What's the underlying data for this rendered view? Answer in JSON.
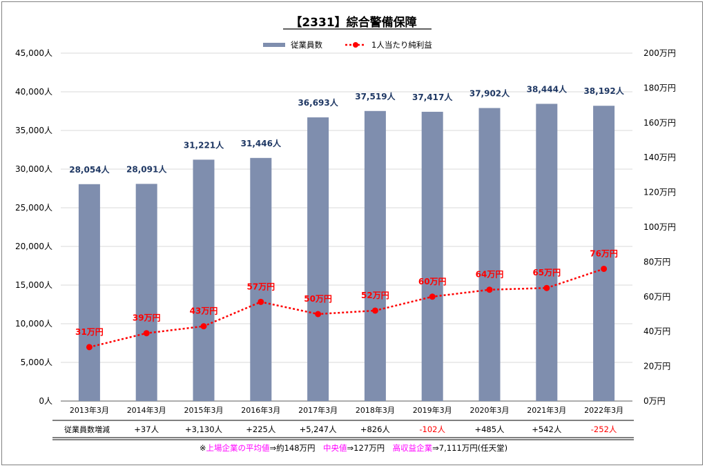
{
  "chart_data": {
    "type": "bar",
    "title": "【2331】綜合警備保障",
    "categories": [
      "2013年3月",
      "2014年3月",
      "2015年3月",
      "2016年3月",
      "2017年3月",
      "2018年3月",
      "2019年3月",
      "2020年3月",
      "2021年3月",
      "2022年3月"
    ],
    "series": [
      {
        "name": "従業員数",
        "type": "bar",
        "axis": "left",
        "color": "#7f8eae",
        "values": [
          28054,
          28091,
          31221,
          31446,
          36693,
          37519,
          37417,
          37902,
          38444,
          38192
        ],
        "labels": [
          "28,054人",
          "28,091人",
          "31,221人",
          "31,446人",
          "36,693人",
          "37,519人",
          "37,417人",
          "37,902人",
          "38,444人",
          "38,192人"
        ]
      },
      {
        "name": "1人当たり純利益",
        "type": "line",
        "axis": "right",
        "color": "#ff0000",
        "values": [
          31,
          39,
          43,
          57,
          50,
          52,
          60,
          64,
          65,
          76
        ],
        "labels": [
          "31万円",
          "39万円",
          "43万円",
          "57万円",
          "50万円",
          "52万円",
          "60万円",
          "64万円",
          "65万円",
          "76万円"
        ]
      }
    ],
    "y_left": {
      "min": 0,
      "max": 45000,
      "ticks": [
        "0人",
        "5,000人",
        "10,000人",
        "15,000人",
        "20,000人",
        "25,000人",
        "30,000人",
        "35,000人",
        "40,000人",
        "45,000人"
      ]
    },
    "y_right": {
      "min": 0,
      "max": 200,
      "ticks": [
        "0万円",
        "20万円",
        "40万円",
        "60万円",
        "80万円",
        "100万円",
        "120万円",
        "140万円",
        "160万円",
        "180万円",
        "200万円"
      ]
    },
    "legend_position": "top-center",
    "grid": true,
    "table": {
      "row_label": "従業員数増減",
      "values": [
        "+37人",
        "+3,130人",
        "+225人",
        "+5,247人",
        "+826人",
        "-102人",
        "+485人",
        "+542人",
        "-252人"
      ],
      "negative": [
        false,
        false,
        false,
        false,
        false,
        true,
        false,
        false,
        true
      ]
    },
    "footnote": [
      {
        "text": "※",
        "color": "#000000"
      },
      {
        "text": "上場企業の平均値",
        "color": "#ff00ff"
      },
      {
        "text": "⇒約148万円　",
        "color": "#000000"
      },
      {
        "text": "中央値",
        "color": "#ff00ff"
      },
      {
        "text": "⇒127万円　",
        "color": "#000000"
      },
      {
        "text": "高収益企業",
        "color": "#ff00ff"
      },
      {
        "text": "⇒7,111万円(任天堂)",
        "color": "#000000"
      }
    ]
  }
}
